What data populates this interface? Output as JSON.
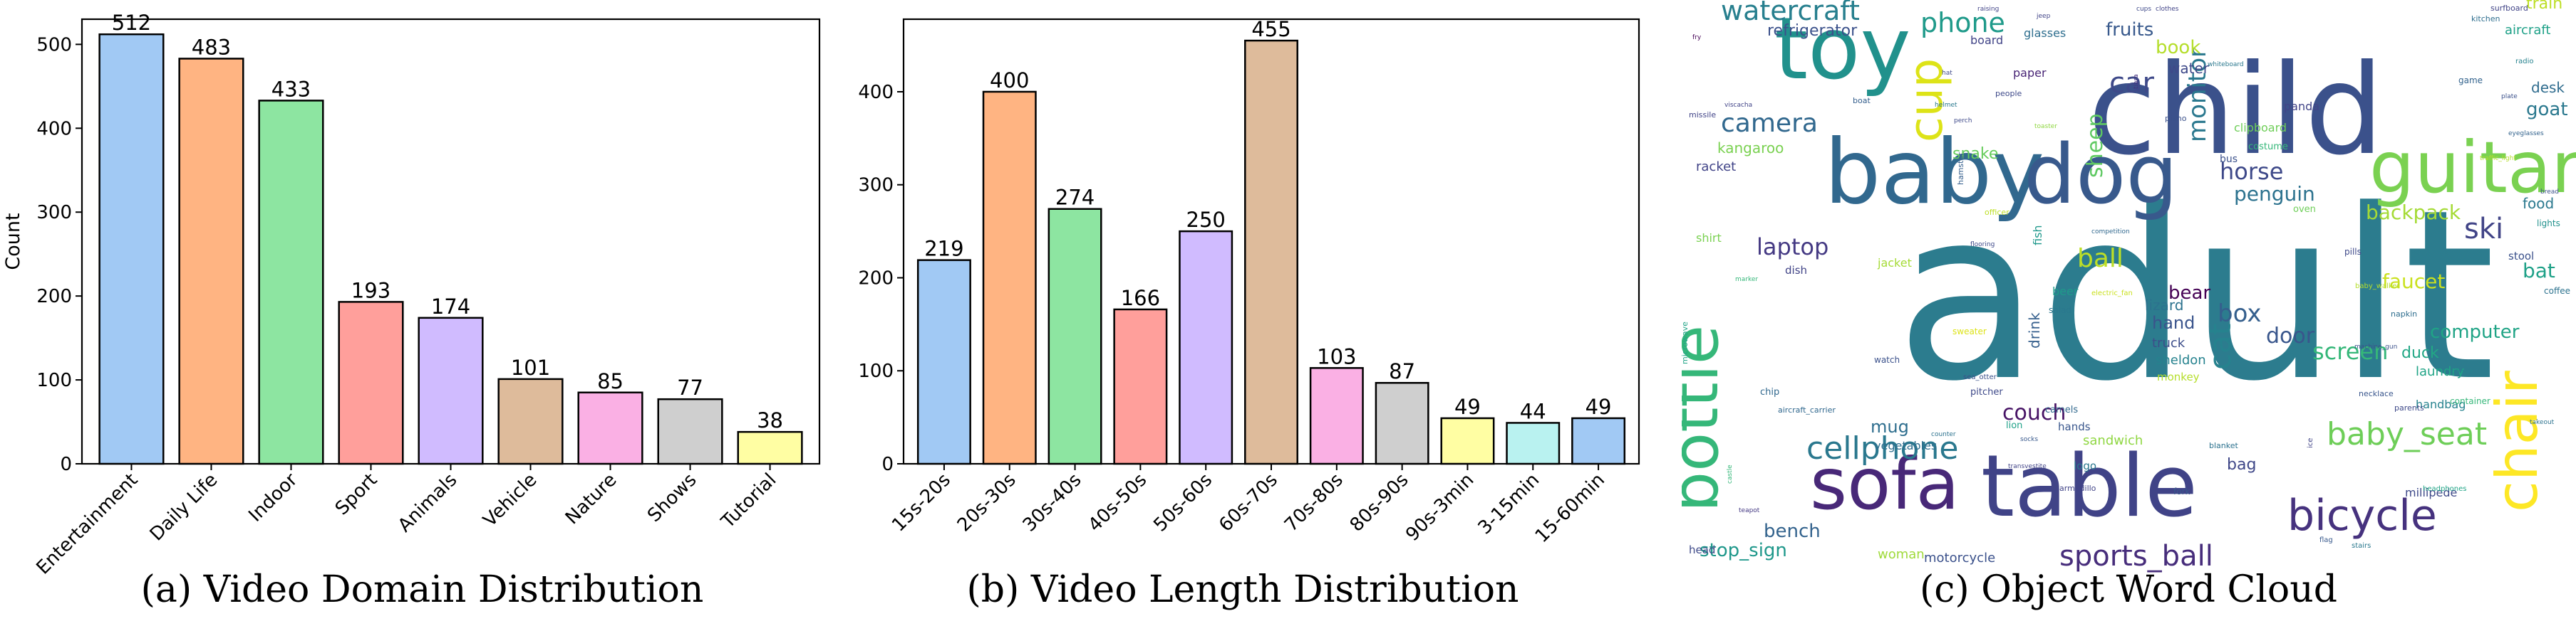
{
  "chart_data": [
    {
      "type": "bar",
      "title": "(a) Video Domain Distribution",
      "xlabel": "",
      "ylabel": "Count",
      "ylim": [
        0,
        530
      ],
      "yticks": [
        0,
        100,
        200,
        300,
        400,
        500
      ],
      "categories": [
        "Entertainment",
        "Daily Life",
        "Indoor",
        "Sport",
        "Animals",
        "Vehicle",
        "Nature",
        "Shows",
        "Tutorial"
      ],
      "values": [
        512,
        483,
        433,
        193,
        174,
        101,
        85,
        77,
        38
      ],
      "colors": [
        "#a1c9f4",
        "#ffb482",
        "#8de5a1",
        "#ff9f9b",
        "#d0bbff",
        "#debb9b",
        "#fab0e4",
        "#cfcfcf",
        "#fffea3"
      ],
      "grid": false
    },
    {
      "type": "bar",
      "title": "(b) Video Length Distribution",
      "xlabel": "",
      "ylabel": "Count",
      "ylim": [
        0,
        478
      ],
      "yticks": [
        0,
        100,
        200,
        300,
        400
      ],
      "categories": [
        "15s-20s",
        "20s-30s",
        "30s-40s",
        "40s-50s",
        "50s-60s",
        "60s-70s",
        "70s-80s",
        "80s-90s",
        "90s-3min",
        "3-15min",
        "15-60min"
      ],
      "values": [
        219,
        400,
        274,
        166,
        250,
        455,
        103,
        87,
        49,
        44,
        49
      ],
      "colors": [
        "#a1c9f4",
        "#ffb482",
        "#8de5a1",
        "#ff9f9b",
        "#d0bbff",
        "#debb9b",
        "#fab0e4",
        "#cfcfcf",
        "#fffea3",
        "#b9f2f0",
        "#a1c9f4"
      ],
      "grid": false
    }
  ],
  "wordcloud": {
    "caption": "(c) Object Word Cloud",
    "words": [
      {
        "text": "adult",
        "color": "#2c7c8e",
        "size": 330
      },
      {
        "text": "child",
        "color": "#3b518b",
        "size": 175
      },
      {
        "text": "baby",
        "color": "#31688e",
        "size": 125
      },
      {
        "text": "dog",
        "color": "#38598c",
        "size": 115
      },
      {
        "text": "toy",
        "color": "#21918c",
        "size": 120
      },
      {
        "text": "table",
        "color": "#404387",
        "size": 120
      },
      {
        "text": "sofa",
        "color": "#482878",
        "size": 100
      },
      {
        "text": "guitar",
        "color": "#7ad151",
        "size": 100
      },
      {
        "text": "bottle",
        "color": "#35b779",
        "size": 90
      },
      {
        "text": "chair",
        "color": "#fde725",
        "size": 80
      },
      {
        "text": "cup",
        "color": "#dde318",
        "size": 65
      },
      {
        "text": "bicycle",
        "color": "#46327e",
        "size": 60
      },
      {
        "text": "baby_seat",
        "color": "#6ece58",
        "size": 44
      },
      {
        "text": "cellphone",
        "color": "#2a788e",
        "size": 44
      },
      {
        "text": "sports_ball",
        "color": "#472d7b",
        "size": 40
      },
      {
        "text": "watercraft",
        "color": "#277f8e",
        "size": 38
      },
      {
        "text": "phone",
        "color": "#1f9a8a",
        "size": 38
      },
      {
        "text": "car",
        "color": "#3e4989",
        "size": 40
      },
      {
        "text": "camera",
        "color": "#31688e",
        "size": 36
      },
      {
        "text": "monitor",
        "color": "#2a788e",
        "size": 34
      },
      {
        "text": "cat",
        "color": "#26828e",
        "size": 42
      },
      {
        "text": "ball",
        "color": "#bddf26",
        "size": 36
      },
      {
        "text": "horse",
        "color": "#3e4989",
        "size": 32
      },
      {
        "text": "screen",
        "color": "#35b779",
        "size": 32
      },
      {
        "text": "ski",
        "color": "#414487",
        "size": 40
      },
      {
        "text": "laptop",
        "color": "#443983",
        "size": 32
      },
      {
        "text": "couch",
        "color": "#471365",
        "size": 30
      },
      {
        "text": "box",
        "color": "#355f8d",
        "size": 34
      },
      {
        "text": "door",
        "color": "#39568c",
        "size": 30
      },
      {
        "text": "sheep",
        "color": "#5ec962",
        "size": 30
      },
      {
        "text": "penguin",
        "color": "#2c728e",
        "size": 28
      },
      {
        "text": "backpack",
        "color": "#a5db36",
        "size": 28
      },
      {
        "text": "book",
        "color": "#b5de2b",
        "size": 26
      },
      {
        "text": "bat",
        "color": "#1fa188",
        "size": 28
      },
      {
        "text": "goat",
        "color": "#2a788e",
        "size": 26
      },
      {
        "text": "stop_sign",
        "color": "#1f988b",
        "size": 26
      },
      {
        "text": "bench",
        "color": "#33638d",
        "size": 26
      },
      {
        "text": "faucet",
        "color": "#cae11f",
        "size": 28
      },
      {
        "text": "fruits",
        "color": "#38598c",
        "size": 26
      },
      {
        "text": "computer",
        "color": "#20a486",
        "size": 26
      },
      {
        "text": "bear",
        "color": "#440154",
        "size": 26
      },
      {
        "text": "mug",
        "color": "#2e6e8e",
        "size": 24
      },
      {
        "text": "hand",
        "color": "#3a548c",
        "size": 24
      },
      {
        "text": "snake",
        "color": "#67cc5c",
        "size": 22
      },
      {
        "text": "duck",
        "color": "#22a785",
        "size": 22
      },
      {
        "text": "bag",
        "color": "#3f4788",
        "size": 22
      },
      {
        "text": "refrigerator",
        "color": "#3b518b",
        "size": 22
      },
      {
        "text": "kangaroo",
        "color": "#7ad151",
        "size": 20
      },
      {
        "text": "desk",
        "color": "#2f6c8e",
        "size": 20
      },
      {
        "text": "drink",
        "color": "#355f8d",
        "size": 20
      },
      {
        "text": "lizard",
        "color": "#2c728e",
        "size": 20
      },
      {
        "text": "truck",
        "color": "#3d4e8a",
        "size": 18
      },
      {
        "text": "sheldon",
        "color": "#26828e",
        "size": 18
      },
      {
        "text": "water",
        "color": "#3e4989",
        "size": 20
      },
      {
        "text": "food",
        "color": "#2a788e",
        "size": 20
      },
      {
        "text": "racket",
        "color": "#404387",
        "size": 18
      },
      {
        "text": "woman",
        "color": "#9fda3a",
        "size": 18
      },
      {
        "text": "motorcycle",
        "color": "#3b518b",
        "size": 18
      },
      {
        "text": "sandwich",
        "color": "#90d743",
        "size": 18
      },
      {
        "text": "laundry",
        "color": "#20a486",
        "size": 18
      },
      {
        "text": "millipede",
        "color": "#3e4989",
        "size": 16
      },
      {
        "text": "handbag",
        "color": "#26828e",
        "size": 16
      },
      {
        "text": "vegetables",
        "color": "#2e6e8e",
        "size": 16
      },
      {
        "text": "clipboard",
        "color": "#6ece58",
        "size": 16
      },
      {
        "text": "train",
        "color": "#bddf26",
        "size": 22
      },
      {
        "text": "aircraft",
        "color": "#1fa188",
        "size": 18
      },
      {
        "text": "paper",
        "color": "#482475",
        "size": 16
      },
      {
        "text": "glasses",
        "color": "#2e6e8e",
        "size": 16
      },
      {
        "text": "board",
        "color": "#414487",
        "size": 16
      },
      {
        "text": "jacket",
        "color": "#a5db36",
        "size": 16
      },
      {
        "text": "shirt",
        "color": "#7ad151",
        "size": 16
      },
      {
        "text": "beer",
        "color": "#1f9a8a",
        "size": 16
      },
      {
        "text": "fish",
        "color": "#1f988b",
        "size": 16
      },
      {
        "text": "head",
        "color": "#3e4989",
        "size": 15
      },
      {
        "text": "monkey",
        "color": "#b5de2b",
        "size": 15
      },
      {
        "text": "logo",
        "color": "#2a788e",
        "size": 15
      },
      {
        "text": "hands",
        "color": "#39568c",
        "size": 15
      },
      {
        "text": "dish",
        "color": "#414487",
        "size": 15
      },
      {
        "text": "panda",
        "color": "#414487",
        "size": 16
      },
      {
        "text": "stool",
        "color": "#3b518b",
        "size": 15
      },
      {
        "text": "chip",
        "color": "#31688e",
        "size": 13
      },
      {
        "text": "pitcher",
        "color": "#3e4989",
        "size": 13
      },
      {
        "text": "camels",
        "color": "#31688e",
        "size": 13
      },
      {
        "text": "oven",
        "color": "#6ece58",
        "size": 13
      },
      {
        "text": "lion",
        "color": "#1fa188",
        "size": 13
      },
      {
        "text": "pills",
        "color": "#3e4989",
        "size": 12
      },
      {
        "text": "costume",
        "color": "#35b779",
        "size": 13
      },
      {
        "text": "coffee",
        "color": "#2c728e",
        "size": 12
      },
      {
        "text": "fork",
        "color": "#38598c",
        "size": 12
      },
      {
        "text": "watch",
        "color": "#3b518b",
        "size": 12
      },
      {
        "text": "lights",
        "color": "#21918c",
        "size": 12
      },
      {
        "text": "salad",
        "color": "#2a788e",
        "size": 12
      },
      {
        "text": "surfboard",
        "color": "#414487",
        "size": 11
      },
      {
        "text": "game",
        "color": "#33638d",
        "size": 12
      },
      {
        "text": "boat",
        "color": "#355f8d",
        "size": 11
      },
      {
        "text": "missile",
        "color": "#404387",
        "size": 11
      },
      {
        "text": "sweater",
        "color": "#dde318",
        "size": 12
      },
      {
        "text": "microwave",
        "color": "#20a486",
        "size": 11
      },
      {
        "text": "blanket",
        "color": "#2c728e",
        "size": 11
      },
      {
        "text": "necklace",
        "color": "#39568c",
        "size": 11
      },
      {
        "text": "container",
        "color": "#35b779",
        "size": 12
      },
      {
        "text": "people",
        "color": "#3e4989",
        "size": 11
      },
      {
        "text": "piano",
        "color": "#3b518b",
        "size": 11
      },
      {
        "text": "kitchen",
        "color": "#2e6e8e",
        "size": 11
      },
      {
        "text": "radio",
        "color": "#26828e",
        "size": 10
      },
      {
        "text": "flag",
        "color": "#38598c",
        "size": 10
      },
      {
        "text": "stairs",
        "color": "#2a788e",
        "size": 10
      },
      {
        "text": "ice",
        "color": "#414487",
        "size": 10
      },
      {
        "text": "bus",
        "color": "#3b518b",
        "size": 14
      },
      {
        "text": "parents",
        "color": "#3e4989",
        "size": 11
      },
      {
        "text": "armadillo",
        "color": "#404387",
        "size": 11
      },
      {
        "text": "headphones",
        "color": "#20a486",
        "size": 10
      },
      {
        "text": "aircraft_carrier",
        "color": "#31688e",
        "size": 11
      },
      {
        "text": "electric_fan",
        "color": "#cae11f",
        "size": 10
      },
      {
        "text": "baby_walker",
        "color": "#b5de2b",
        "size": 10
      },
      {
        "text": "napkin",
        "color": "#2e6e8e",
        "size": 11
      },
      {
        "text": "sea_otter",
        "color": "#3b518b",
        "size": 10
      },
      {
        "text": "teapot",
        "color": "#443983",
        "size": 9
      },
      {
        "text": "socks",
        "color": "#38598c",
        "size": 9
      },
      {
        "text": "hat",
        "color": "#3e4989",
        "size": 9
      },
      {
        "text": "fry",
        "color": "#440154",
        "size": 9
      },
      {
        "text": "jeep",
        "color": "#414487",
        "size": 9
      },
      {
        "text": "eyeglasses",
        "color": "#33638d",
        "size": 9
      },
      {
        "text": "traffic_light",
        "color": "#b5de2b",
        "size": 9
      },
      {
        "text": "printer",
        "color": "#26828e",
        "size": 9
      },
      {
        "text": "cups",
        "color": "#3e4989",
        "size": 9
      },
      {
        "text": "clothes",
        "color": "#404387",
        "size": 9
      },
      {
        "text": "toaster",
        "color": "#90d743",
        "size": 9
      },
      {
        "text": "marker",
        "color": "#35b779",
        "size": 9
      },
      {
        "text": "counter",
        "color": "#2c728e",
        "size": 9
      },
      {
        "text": "tiara",
        "color": "#46327e",
        "size": 9
      },
      {
        "text": "plate",
        "color": "#3b518b",
        "size": 9
      },
      {
        "text": "helmet",
        "color": "#2a788e",
        "size": 9
      },
      {
        "text": "perch",
        "color": "#3e4989",
        "size": 9
      },
      {
        "text": "viscacha",
        "color": "#404387",
        "size": 9
      },
      {
        "text": "bread",
        "color": "#3b518b",
        "size": 9
      },
      {
        "text": "takeout",
        "color": "#2c728e",
        "size": 9
      },
      {
        "text": "hamster",
        "color": "#355f8d",
        "size": 11
      },
      {
        "text": "officer",
        "color": "#bddf26",
        "size": 11
      },
      {
        "text": "castle",
        "color": "#35b779",
        "size": 9
      },
      {
        "text": "flooring",
        "color": "#3e4989",
        "size": 9
      },
      {
        "text": "raising",
        "color": "#404387",
        "size": 9
      },
      {
        "text": "whiteboard",
        "color": "#2a788e",
        "size": 9
      },
      {
        "text": "competition",
        "color": "#31688e",
        "size": 9
      },
      {
        "text": "machine_gun",
        "color": "#3b518b",
        "size": 9
      },
      {
        "text": "transvestite",
        "color": "#414487",
        "size": 9
      }
    ]
  }
}
